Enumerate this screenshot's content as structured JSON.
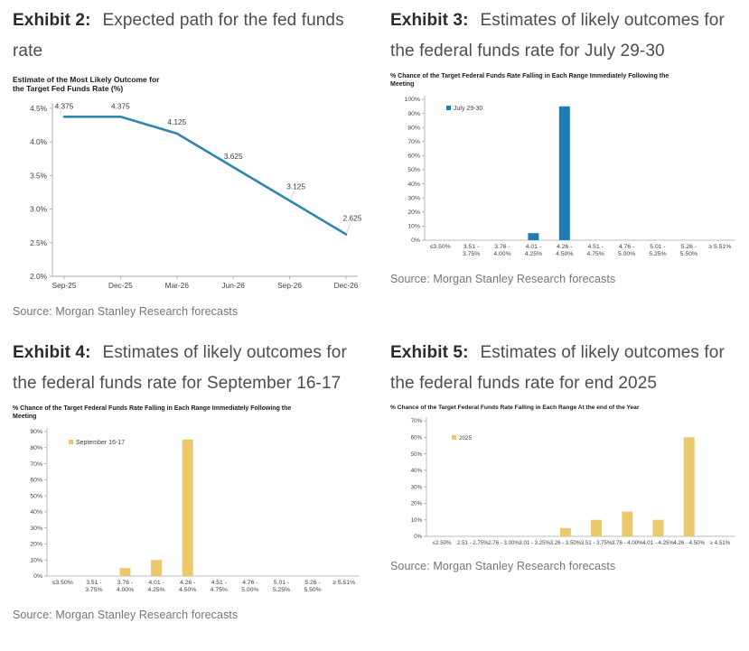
{
  "exhibits": [
    {
      "label": "Exhibit 2:",
      "title": "Expected path for the fed funds rate",
      "chart_title": "Estimate of the Most Likely Outcome for\nthe Target Fed Funds Rate (%)",
      "source": "Source: Morgan Stanley Research forecasts"
    },
    {
      "label": "Exhibit 3:",
      "title": "Estimates of likely outcomes for the federal funds rate for July 29-30",
      "chart_title": "% Chance of the Target Federal Funds Rate Falling in Each Range Immediately Following the\nMeeting",
      "source": "Source: Morgan Stanley Research forecasts"
    },
    {
      "label": "Exhibit 4:",
      "title": "Estimates of likely outcomes for the federal funds rate for September 16-17",
      "chart_title": "% Chance of the Target Federal Funds Rate Falling in Each Range Immediately Following the\nMeeting",
      "source": "Source: Morgan Stanley Research forecasts"
    },
    {
      "label": "Exhibit 5:",
      "title": "Estimates of likely outcomes for the federal funds rate for end 2025",
      "chart_title": "% Chance of the Target Federal Funds Rate Falling in Each Range At the end of the Year",
      "source": "Source: Morgan Stanley Research forecasts"
    }
  ],
  "chart_data": [
    {
      "type": "line",
      "title": "Estimate of the Most Likely Outcome for the Target Fed Funds Rate (%)",
      "categories": [
        "Sep-25",
        "Dec-25",
        "Mar-26",
        "Jun-26",
        "Sep-26",
        "Dec-26"
      ],
      "values": [
        4.375,
        4.375,
        4.125,
        3.625,
        3.125,
        2.625
      ],
      "point_labels": [
        "4.375",
        "4.375",
        "4.125",
        "3.625",
        "3.125",
        "2.625"
      ],
      "ylim": [
        2.0,
        4.5
      ],
      "ytick_step": 0.5,
      "ytick_labels": [
        "4.5%",
        "4.0%",
        "3.5%",
        "3.0%",
        "2.5%",
        "2.0%"
      ],
      "grid": false,
      "color": "#2e87ad"
    },
    {
      "type": "bar",
      "title": "% Chance of the Target Federal Funds Rate Falling in Each Range Immediately Following the Meeting",
      "legend": "July 29-30",
      "legend_position": "top-left",
      "categories": [
        "≤3.50%",
        "3.51 -\n3.75%",
        "3.76 -\n4.00%",
        "4.01 -\n4.25%",
        "4.26 -\n4.50%",
        "4.51 -\n4.75%",
        "4.76 -\n5.00%",
        "5.01 -\n5.25%",
        "5.26 -\n5.50%",
        "≥ 5.51%"
      ],
      "values": [
        0,
        0,
        0,
        5,
        95,
        0,
        0,
        0,
        0,
        0
      ],
      "ylim": [
        0,
        100
      ],
      "ytick_step": 10,
      "grid": false,
      "color": "#1e7db6"
    },
    {
      "type": "bar",
      "title": "% Chance of the Target Federal Funds Rate Falling in Each Range Immediately Following the Meeting",
      "legend": "September 16-17",
      "legend_position": "top-left",
      "categories": [
        "≤3.50%",
        "3.51 -\n3.75%",
        "3.76 -\n4.00%",
        "4.01 -\n4.25%",
        "4.26 -\n4.50%",
        "4.51 -\n4.75%",
        "4.76 -\n5.00%",
        "5.01 -\n5.25%",
        "5.26 -\n5.50%",
        "≥ 5.51%"
      ],
      "values": [
        0,
        0,
        5,
        10,
        85,
        0,
        0,
        0,
        0,
        0
      ],
      "ylim": [
        0,
        90
      ],
      "ytick_step": 10,
      "grid": false,
      "color": "#ecc86d"
    },
    {
      "type": "bar",
      "title": "% Chance of the Target Federal Funds Rate Falling in Each Range At the end of the Year",
      "legend": "2025",
      "legend_position": "top-left",
      "categories": [
        "≤2.50%",
        "2.51 - 2.75%",
        "2.76 - 3.00%",
        "3.01 - 3.25%",
        "3.26 - 3.50%",
        "3.51 - 3.75%",
        "3.76 - 4.00%",
        "4.01 - 4.25%",
        "4.26 - 4.50%",
        "≥ 4.51%"
      ],
      "values": [
        0,
        0,
        0,
        0,
        5,
        10,
        15,
        10,
        60,
        0
      ],
      "ylim": [
        0,
        70
      ],
      "ytick_step": 10,
      "grid": false,
      "color": "#ecc86d"
    }
  ],
  "colors": {
    "line_series": "#2e87ad",
    "blue_bar": "#1e7db6",
    "gold_bar": "#ecc86d",
    "axis": "#a8a8a8",
    "tick_text": "#3f3f3f",
    "source_text": "#757575"
  }
}
